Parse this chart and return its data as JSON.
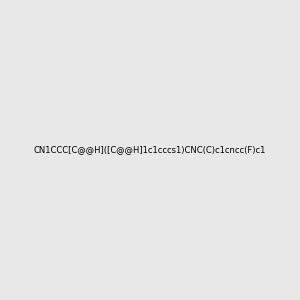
{
  "smiles": "CN1CCC[C@@H]([C@@H]1c1cccs1)CNC(C)c1cncc(F)c1",
  "image_size": 300,
  "background_color": "#e8e8e8",
  "title": ""
}
